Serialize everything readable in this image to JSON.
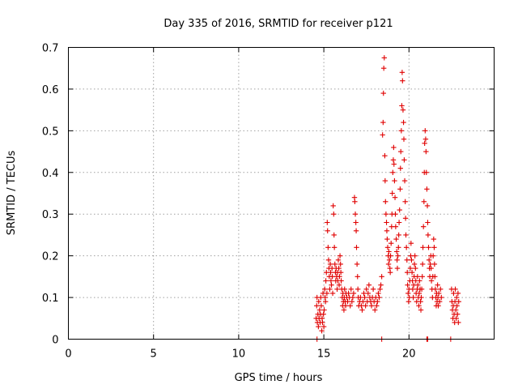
{
  "chart_data": {
    "type": "scatter",
    "title": "Day 335 of 2016, SRMTID for receiver p121",
    "xlabel": "GPS time / hours",
    "ylabel": "SRMTID / TECUs",
    "xlim": [
      0,
      25
    ],
    "ylim": [
      0,
      0.7
    ],
    "x_ticks": [
      0,
      5,
      10,
      15,
      20
    ],
    "y_ticks": [
      0,
      0.1,
      0.2,
      0.3,
      0.4,
      0.5,
      0.6,
      0.7
    ],
    "x_tick_labels": [
      "0",
      "5",
      "10",
      "15",
      "20"
    ],
    "y_tick_labels": [
      "0",
      "0.1",
      "0.2",
      "0.3",
      "0.4",
      "0.5",
      "0.6",
      "0.7"
    ],
    "grid": true,
    "marker": "+",
    "marker_color": "#e00000",
    "series": [
      {
        "name": "SRMTID",
        "points": [
          [
            14.55,
            0.05
          ],
          [
            14.58,
            0.08
          ],
          [
            14.6,
            0.1
          ],
          [
            14.62,
            0.04
          ],
          [
            14.65,
            0.06
          ],
          [
            14.68,
            0.03
          ],
          [
            14.7,
            0.09
          ],
          [
            14.72,
            0.05
          ],
          [
            14.75,
            0.07
          ],
          [
            14.78,
            0.04
          ],
          [
            14.8,
            0.06
          ],
          [
            14.82,
            0.1
          ],
          [
            14.85,
            0.08
          ],
          [
            14.88,
            0.02
          ],
          [
            14.9,
            0.05
          ],
          [
            14.92,
            0.04
          ],
          [
            14.95,
            0.11
          ],
          [
            14.98,
            0.06
          ],
          [
            15.0,
            0.03
          ],
          [
            15.02,
            0.07
          ],
          [
            15.05,
            0.12
          ],
          [
            15.08,
            0.1
          ],
          [
            15.1,
            0.09
          ],
          [
            15.12,
            0.14
          ],
          [
            15.15,
            0.16
          ],
          [
            15.18,
            0.11
          ],
          [
            15.2,
            0.28
          ],
          [
            15.22,
            0.26
          ],
          [
            15.25,
            0.22
          ],
          [
            15.28,
            0.19
          ],
          [
            15.3,
            0.17
          ],
          [
            15.32,
            0.15
          ],
          [
            15.35,
            0.12
          ],
          [
            15.38,
            0.18
          ],
          [
            15.4,
            0.16
          ],
          [
            15.42,
            0.14
          ],
          [
            15.45,
            0.13
          ],
          [
            15.48,
            0.17
          ],
          [
            15.5,
            0.15
          ],
          [
            15.52,
            0.11
          ],
          [
            15.55,
            0.32
          ],
          [
            15.58,
            0.3
          ],
          [
            15.6,
            0.25
          ],
          [
            15.62,
            0.22
          ],
          [
            15.65,
            0.18
          ],
          [
            15.68,
            0.16
          ],
          [
            15.7,
            0.14
          ],
          [
            15.72,
            0.17
          ],
          [
            15.75,
            0.15
          ],
          [
            15.78,
            0.12
          ],
          [
            15.8,
            0.16
          ],
          [
            15.82,
            0.14
          ],
          [
            15.85,
            0.19
          ],
          [
            15.88,
            0.17
          ],
          [
            15.9,
            0.13
          ],
          [
            15.92,
            0.15
          ],
          [
            15.95,
            0.2
          ],
          [
            15.98,
            0.18
          ],
          [
            16.0,
            0.16
          ],
          [
            16.02,
            0.14
          ],
          [
            16.05,
            0.12
          ],
          [
            16.08,
            0.1
          ],
          [
            16.1,
            0.08
          ],
          [
            16.12,
            0.11
          ],
          [
            16.15,
            0.09
          ],
          [
            16.18,
            0.07
          ],
          [
            16.2,
            0.1
          ],
          [
            16.22,
            0.12
          ],
          [
            16.25,
            0.09
          ],
          [
            16.28,
            0.08
          ],
          [
            16.3,
            0.11
          ],
          [
            16.35,
            0.1
          ],
          [
            16.4,
            0.09
          ],
          [
            16.45,
            0.11
          ],
          [
            16.5,
            0.1
          ],
          [
            16.55,
            0.08
          ],
          [
            16.6,
            0.12
          ],
          [
            16.65,
            0.09
          ],
          [
            16.7,
            0.1
          ],
          [
            16.75,
            0.11
          ],
          [
            16.8,
            0.34
          ],
          [
            16.82,
            0.33
          ],
          [
            16.85,
            0.3
          ],
          [
            16.88,
            0.28
          ],
          [
            16.9,
            0.26
          ],
          [
            16.92,
            0.22
          ],
          [
            16.95,
            0.18
          ],
          [
            16.98,
            0.15
          ],
          [
            17.0,
            0.12
          ],
          [
            17.02,
            0.1
          ],
          [
            17.05,
            0.08
          ],
          [
            17.1,
            0.09
          ],
          [
            17.15,
            0.1
          ],
          [
            17.2,
            0.08
          ],
          [
            17.25,
            0.07
          ],
          [
            17.3,
            0.09
          ],
          [
            17.35,
            0.11
          ],
          [
            17.4,
            0.1
          ],
          [
            17.45,
            0.08
          ],
          [
            17.5,
            0.12
          ],
          [
            17.55,
            0.09
          ],
          [
            17.6,
            0.11
          ],
          [
            17.65,
            0.13
          ],
          [
            17.7,
            0.1
          ],
          [
            17.75,
            0.09
          ],
          [
            17.8,
            0.08
          ],
          [
            17.85,
            0.1
          ],
          [
            17.9,
            0.12
          ],
          [
            17.95,
            0.09
          ],
          [
            18.0,
            0.07
          ],
          [
            18.05,
            0.1
          ],
          [
            18.1,
            0.08
          ],
          [
            18.15,
            0.09
          ],
          [
            18.2,
            0.11
          ],
          [
            18.25,
            0.1
          ],
          [
            18.3,
            0.12
          ],
          [
            18.35,
            0.13
          ],
          [
            18.4,
            0.15
          ],
          [
            18.45,
            0.49
          ],
          [
            18.48,
            0.52
          ],
          [
            18.5,
            0.59
          ],
          [
            18.52,
            0.65
          ],
          [
            18.55,
            0.675
          ],
          [
            18.58,
            0.44
          ],
          [
            18.6,
            0.38
          ],
          [
            18.62,
            0.33
          ],
          [
            18.65,
            0.3
          ],
          [
            18.68,
            0.28
          ],
          [
            18.7,
            0.26
          ],
          [
            18.72,
            0.24
          ],
          [
            18.75,
            0.22
          ],
          [
            18.78,
            0.2
          ],
          [
            18.8,
            0.18
          ],
          [
            18.82,
            0.21
          ],
          [
            18.85,
            0.19
          ],
          [
            18.88,
            0.17
          ],
          [
            18.9,
            0.16
          ],
          [
            18.92,
            0.2
          ],
          [
            18.95,
            0.23
          ],
          [
            18.98,
            0.27
          ],
          [
            19.0,
            0.3
          ],
          [
            19.02,
            0.35
          ],
          [
            19.05,
            0.4
          ],
          [
            19.08,
            0.43
          ],
          [
            19.1,
            0.46
          ],
          [
            19.12,
            0.42
          ],
          [
            19.15,
            0.38
          ],
          [
            19.18,
            0.34
          ],
          [
            19.2,
            0.3
          ],
          [
            19.22,
            0.27
          ],
          [
            19.25,
            0.24
          ],
          [
            19.28,
            0.21
          ],
          [
            19.3,
            0.19
          ],
          [
            19.32,
            0.17
          ],
          [
            19.35,
            0.2
          ],
          [
            19.38,
            0.22
          ],
          [
            19.4,
            0.25
          ],
          [
            19.42,
            0.28
          ],
          [
            19.45,
            0.31
          ],
          [
            19.48,
            0.36
          ],
          [
            19.5,
            0.41
          ],
          [
            19.52,
            0.45
          ],
          [
            19.55,
            0.5
          ],
          [
            19.58,
            0.56
          ],
          [
            19.6,
            0.64
          ],
          [
            19.62,
            0.62
          ],
          [
            19.65,
            0.55
          ],
          [
            19.68,
            0.52
          ],
          [
            19.7,
            0.48
          ],
          [
            19.72,
            0.43
          ],
          [
            19.75,
            0.38
          ],
          [
            19.78,
            0.33
          ],
          [
            19.8,
            0.29
          ],
          [
            19.82,
            0.25
          ],
          [
            19.85,
            0.22
          ],
          [
            19.88,
            0.19
          ],
          [
            19.9,
            0.16
          ],
          [
            19.92,
            0.13
          ],
          [
            19.95,
            0.11
          ],
          [
            19.98,
            0.09
          ],
          [
            20.0,
            0.12
          ],
          [
            20.02,
            0.1
          ],
          [
            20.05,
            0.14
          ],
          [
            20.08,
            0.17
          ],
          [
            20.1,
            0.2
          ],
          [
            20.12,
            0.23
          ],
          [
            20.15,
            0.19
          ],
          [
            20.18,
            0.16
          ],
          [
            20.2,
            0.14
          ],
          [
            20.22,
            0.12
          ],
          [
            20.25,
            0.1
          ],
          [
            20.28,
            0.13
          ],
          [
            20.3,
            0.15
          ],
          [
            20.32,
            0.18
          ],
          [
            20.35,
            0.2
          ],
          [
            20.38,
            0.17
          ],
          [
            20.4,
            0.14
          ],
          [
            20.42,
            0.11
          ],
          [
            20.45,
            0.09
          ],
          [
            20.48,
            0.12
          ],
          [
            20.5,
            0.15
          ],
          [
            20.52,
            0.13
          ],
          [
            20.55,
            0.1
          ],
          [
            20.58,
            0.08
          ],
          [
            20.6,
            0.11
          ],
          [
            20.62,
            0.14
          ],
          [
            20.65,
            0.12
          ],
          [
            20.68,
            0.09
          ],
          [
            20.7,
            0.07
          ],
          [
            20.72,
            0.1
          ],
          [
            20.75,
            0.12
          ],
          [
            20.78,
            0.15
          ],
          [
            20.8,
            0.18
          ],
          [
            20.82,
            0.22
          ],
          [
            20.85,
            0.27
          ],
          [
            20.88,
            0.33
          ],
          [
            20.9,
            0.4
          ],
          [
            20.92,
            0.47
          ],
          [
            20.95,
            0.5
          ],
          [
            20.98,
            0.48
          ],
          [
            21.0,
            0.45
          ],
          [
            21.02,
            0.4
          ],
          [
            21.05,
            0.36
          ],
          [
            21.08,
            0.32
          ],
          [
            21.1,
            0.28
          ],
          [
            21.12,
            0.25
          ],
          [
            21.15,
            0.22
          ],
          [
            21.18,
            0.19
          ],
          [
            21.2,
            0.17
          ],
          [
            21.22,
            0.15
          ],
          [
            21.25,
            0.18
          ],
          [
            21.28,
            0.2
          ],
          [
            21.3,
            0.17
          ],
          [
            21.32,
            0.14
          ],
          [
            21.35,
            0.12
          ],
          [
            21.38,
            0.1
          ],
          [
            21.4,
            0.15
          ],
          [
            21.42,
            0.2
          ],
          [
            21.45,
            0.24
          ],
          [
            21.48,
            0.22
          ],
          [
            21.5,
            0.18
          ],
          [
            21.52,
            0.15
          ],
          [
            21.55,
            0.12
          ],
          [
            21.58,
            0.1
          ],
          [
            21.6,
            0.08
          ],
          [
            21.62,
            0.11
          ],
          [
            21.65,
            0.09
          ],
          [
            21.68,
            0.13
          ],
          [
            21.7,
            0.1
          ],
          [
            21.72,
            0.08
          ],
          [
            21.75,
            0.11
          ],
          [
            21.8,
            0.09
          ],
          [
            21.85,
            0.12
          ],
          [
            21.9,
            0.1
          ],
          [
            22.5,
            0.12
          ],
          [
            22.52,
            0.09
          ],
          [
            22.55,
            0.07
          ],
          [
            22.58,
            0.05
          ],
          [
            22.6,
            0.08
          ],
          [
            22.62,
            0.11
          ],
          [
            22.65,
            0.06
          ],
          [
            22.68,
            0.04
          ],
          [
            22.7,
            0.09
          ],
          [
            22.72,
            0.12
          ],
          [
            22.75,
            0.07
          ],
          [
            22.78,
            0.05
          ],
          [
            22.8,
            0.1
          ],
          [
            22.82,
            0.08
          ],
          [
            22.85,
            0.06
          ],
          [
            22.88,
            0.11
          ],
          [
            22.9,
            0.04
          ],
          [
            22.92,
            0.09
          ],
          [
            14.6,
            0.0
          ],
          [
            18.4,
            0.0
          ],
          [
            21.05,
            0.0
          ],
          [
            21.1,
            0.0
          ],
          [
            22.45,
            0.0
          ]
        ]
      }
    ]
  }
}
